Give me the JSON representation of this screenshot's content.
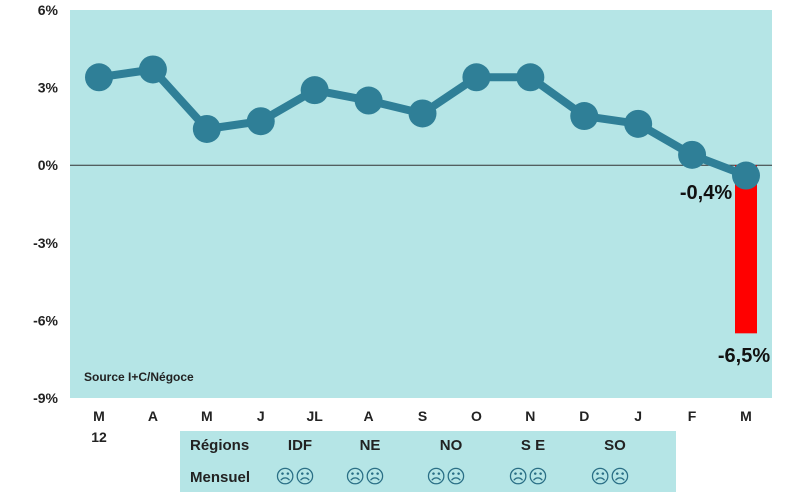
{
  "chart_data": {
    "type": "line",
    "x": [
      "M",
      "A",
      "M",
      "J",
      "JL",
      "A",
      "S",
      "O",
      "N",
      "D",
      "J",
      "F",
      "M"
    ],
    "x_sub_labels": [
      "12",
      "",
      "",
      "",
      "",
      "",
      "",
      "",
      "",
      "",
      "",
      "",
      ""
    ],
    "series": [
      {
        "values": [
          3.4,
          3.7,
          1.4,
          1.7,
          2.9,
          2.5,
          2.0,
          3.4,
          3.4,
          1.9,
          1.6,
          0.4,
          -0.4
        ]
      }
    ],
    "bar": {
      "category_index": 12,
      "value": -6.5
    },
    "annotations": [
      "-0,4%",
      "-6,5%"
    ],
    "ylim": [
      -9,
      6
    ],
    "yticks": [
      6,
      3,
      0,
      -3,
      -6,
      -9
    ],
    "ytick_labels": [
      "6%",
      "3%",
      "0%",
      "-3%",
      "-6%",
      "-9%"
    ],
    "source": "Source I+C/Négoce",
    "grid": false,
    "colors": {
      "plot_bg": "#b5e5e6",
      "line": "#2f7f97",
      "bar": "#ff0000",
      "zero_line": "#333333"
    }
  },
  "regions_table": {
    "row_labels": [
      "Régions",
      "Mensuel"
    ],
    "regions": [
      "IDF",
      "NE",
      "NO",
      "S E",
      "SO"
    ],
    "monthly": [
      "☹☹",
      "☹☹",
      "☹☹",
      "☹☹",
      "☹☹"
    ],
    "icon": "sad-face-icon"
  }
}
